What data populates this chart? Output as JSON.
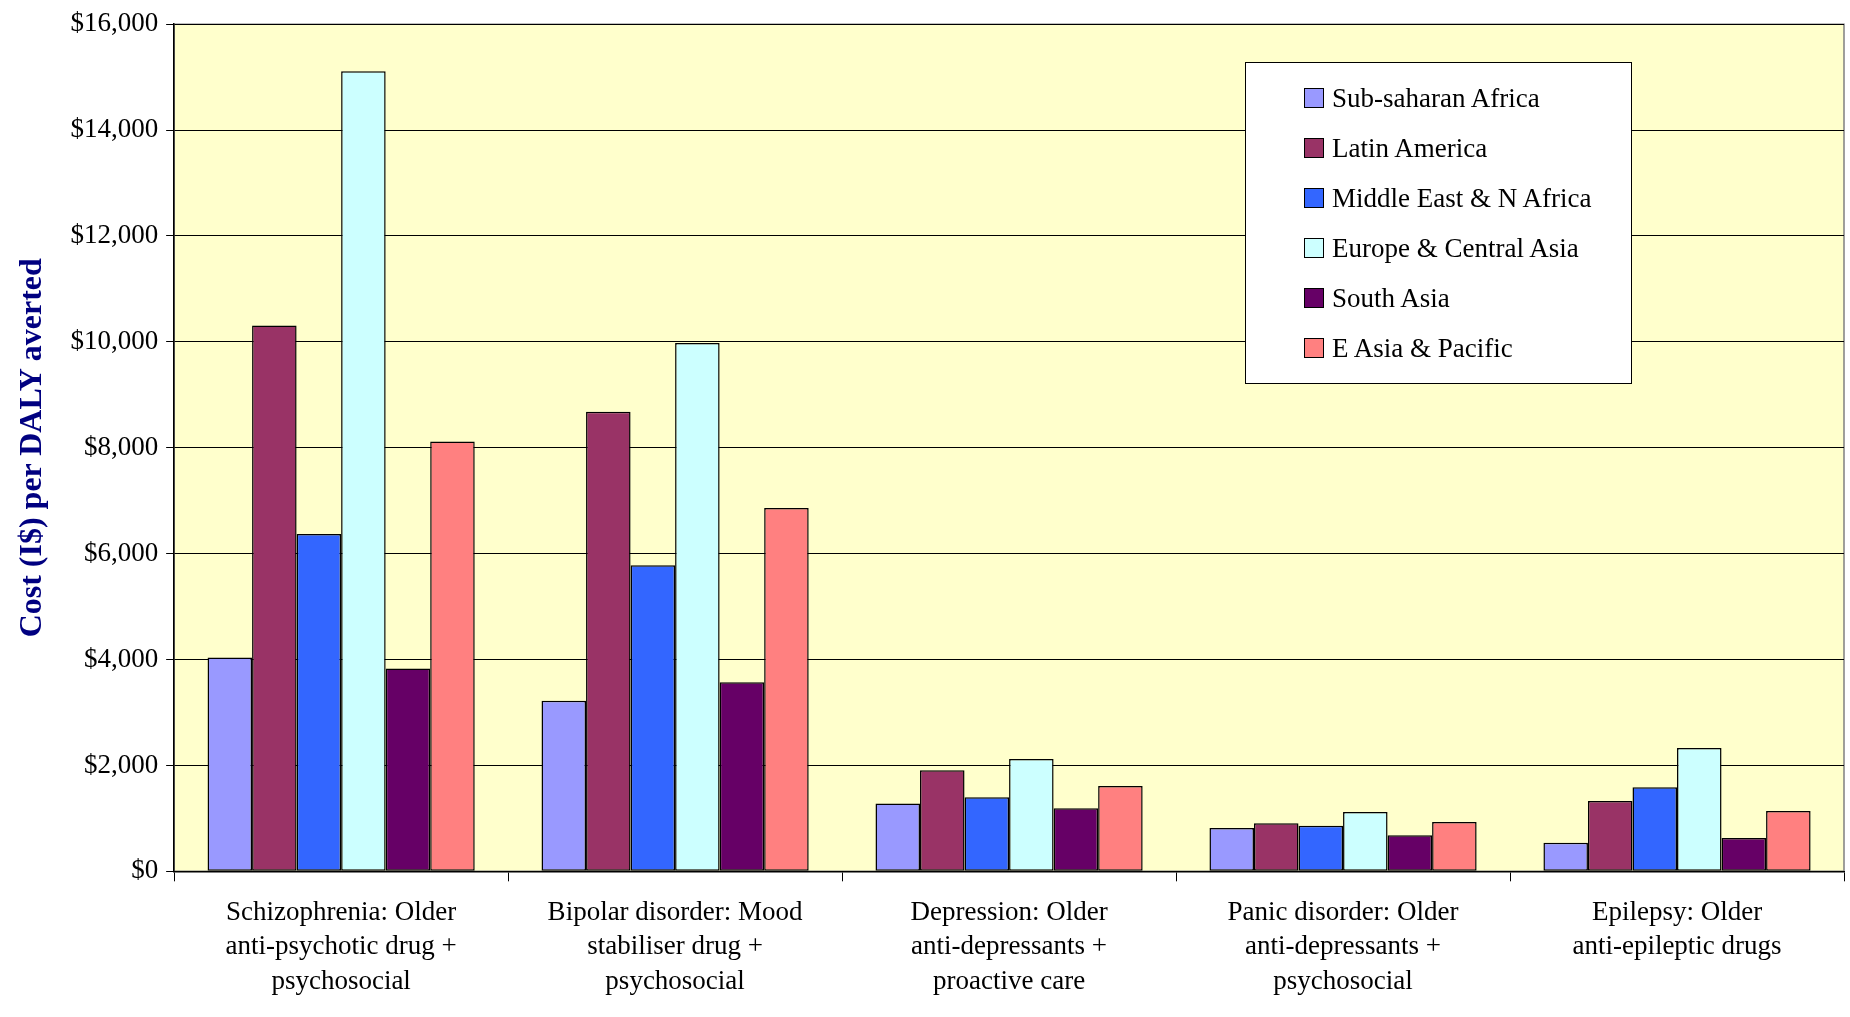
{
  "chart_data": {
    "type": "bar",
    "ylabel": "Cost (I$) per DALY averted",
    "categories": [
      "Schizophrenia: Older anti-psychotic drug + psychosocial",
      "Bipolar disorder: Mood stabiliser drug + psychosocial",
      "Depression: Older anti-depressants + proactive care",
      "Panic disorder: Older anti-depressants + psychosocial",
      "Epilepsy: Older anti-epileptic drugs"
    ],
    "series": [
      {
        "name": "Sub-saharan Africa",
        "color": "#9999ff",
        "values": [
          4040,
          3220,
          1280,
          820,
          540
        ]
      },
      {
        "name": "Latin America",
        "color": "#993366",
        "values": [
          10310,
          8680,
          1910,
          910,
          1330
        ]
      },
      {
        "name": "Middle East & N Africa",
        "color": "#3366ff",
        "values": [
          6370,
          5780,
          1400,
          860,
          1590
        ]
      },
      {
        "name": "Europe & Central Asia",
        "color": "#ccffff",
        "values": [
          15110,
          9980,
          2120,
          1120,
          2330
        ]
      },
      {
        "name": "South Asia",
        "color": "#660066",
        "values": [
          3830,
          3570,
          1190,
          680,
          630
        ]
      },
      {
        "name": "E Asia & Pacific",
        "color": "#ff8080",
        "values": [
          8120,
          6860,
          1610,
          930,
          1140
        ]
      }
    ],
    "ylim": [
      0,
      16000
    ],
    "yticks": [
      {
        "value": 0,
        "label": "$0"
      },
      {
        "value": 2000,
        "label": "$2,000"
      },
      {
        "value": 4000,
        "label": "$4,000"
      },
      {
        "value": 6000,
        "label": "$6,000"
      },
      {
        "value": 8000,
        "label": "$8,000"
      },
      {
        "value": 10000,
        "label": "$10,000"
      },
      {
        "value": 12000,
        "label": "$12,000"
      },
      {
        "value": 14000,
        "label": "$14,000"
      },
      {
        "value": 16000,
        "label": "$16,000"
      }
    ],
    "grid": "y",
    "legend": "top right"
  }
}
